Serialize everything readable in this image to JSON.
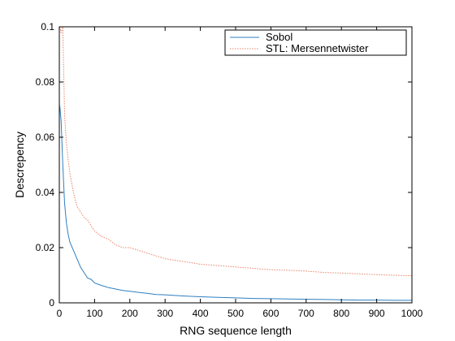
{
  "chart_data": {
    "type": "line",
    "title": "",
    "xlabel": "RNG sequence length",
    "ylabel": "Descrepency",
    "xlim": [
      0,
      1000
    ],
    "ylim": [
      0,
      0.1
    ],
    "xticks": [
      0,
      100,
      200,
      300,
      400,
      500,
      600,
      700,
      800,
      900,
      1000
    ],
    "yticks": [
      0,
      0.02,
      0.04,
      0.06,
      0.08,
      0.1
    ],
    "xtick_labels": [
      "0",
      "100",
      "200",
      "300",
      "400",
      "500",
      "600",
      "700",
      "800",
      "900",
      "1000"
    ],
    "ytick_labels": [
      "0",
      "0.02",
      "0.04",
      "0.06",
      "0.08",
      "0.1"
    ],
    "grid": false,
    "legend_position": "top-right",
    "series": [
      {
        "name": "Sobol",
        "color": "#2e7fc0",
        "style": "solid",
        "x": [
          1,
          5,
          10,
          15,
          20,
          25,
          30,
          40,
          50,
          60,
          70,
          80,
          90,
          100,
          120,
          140,
          160,
          180,
          200,
          225,
          250,
          275,
          300,
          350,
          400,
          450,
          500,
          550,
          600,
          650,
          700,
          750,
          800,
          850,
          900,
          950,
          1000
        ],
        "y": [
          0.072,
          0.066,
          0.05,
          0.036,
          0.029,
          0.025,
          0.022,
          0.019,
          0.016,
          0.013,
          0.011,
          0.009,
          0.0085,
          0.0072,
          0.0063,
          0.0055,
          0.005,
          0.0045,
          0.0042,
          0.0038,
          0.0034,
          0.003,
          0.0029,
          0.0025,
          0.0022,
          0.002,
          0.0018,
          0.0016,
          0.0015,
          0.0014,
          0.0013,
          0.0012,
          0.0011,
          0.001,
          0.001,
          0.0009,
          0.0009
        ]
      },
      {
        "name": "STL: Mersennetwister",
        "color": "#e8836a",
        "style": "dotted",
        "x": [
          1,
          5,
          10,
          15,
          20,
          25,
          30,
          40,
          50,
          60,
          70,
          80,
          90,
          100,
          120,
          140,
          160,
          180,
          200,
          225,
          250,
          275,
          300,
          350,
          400,
          450,
          500,
          550,
          600,
          650,
          700,
          750,
          800,
          850,
          900,
          950,
          1000
        ],
        "y": [
          0.1,
          0.098,
          0.1,
          0.068,
          0.058,
          0.052,
          0.047,
          0.04,
          0.035,
          0.033,
          0.031,
          0.03,
          0.028,
          0.026,
          0.024,
          0.023,
          0.021,
          0.02,
          0.02,
          0.019,
          0.018,
          0.017,
          0.016,
          0.015,
          0.014,
          0.0135,
          0.013,
          0.0125,
          0.012,
          0.0118,
          0.0115,
          0.011,
          0.0108,
          0.0105,
          0.0102,
          0.01,
          0.0098
        ]
      }
    ]
  }
}
